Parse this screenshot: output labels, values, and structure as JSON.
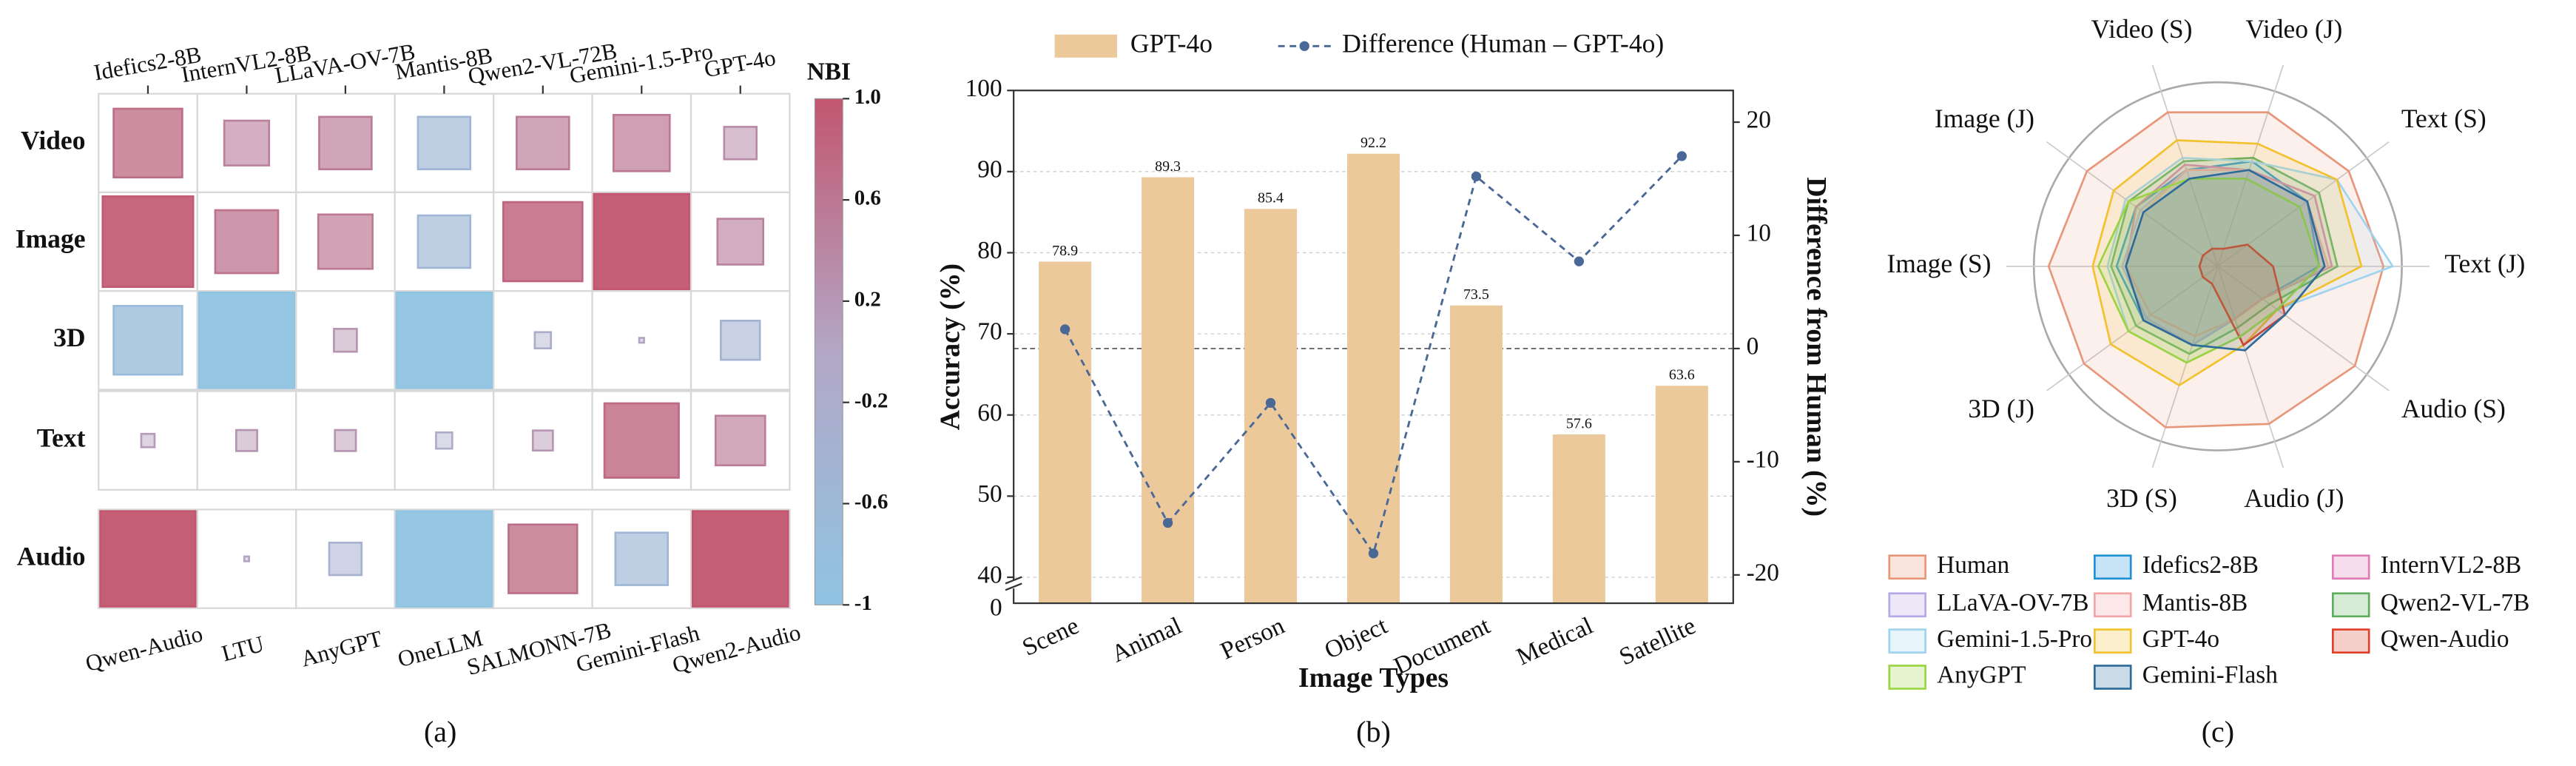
{
  "chart_data": [
    {
      "type": "heatmap",
      "panel_label": "(a)",
      "rows": [
        "Video",
        "Image",
        "3D",
        "Text",
        "Audio"
      ],
      "columns_top": [
        "Idefics2-8B",
        "InternVL2-8B",
        "LLaVA-OV-7B",
        "Mantis-8B",
        "Qwen2-VL-72B",
        "Gemini-1.5-Pro",
        "GPT-4o"
      ],
      "columns_bottom": [
        "Qwen-Audio",
        "LTU",
        "AnyGPT",
        "OneLLM",
        "SALMONN-7B",
        "Gemini-Flash",
        "Qwen2-Audio"
      ],
      "values": [
        [
          0.72,
          0.47,
          0.55,
          -0.55,
          0.55,
          0.59,
          0.34
        ],
        [
          0.95,
          0.66,
          0.57,
          -0.55,
          0.83,
          1.0,
          0.48
        ],
        [
          -0.72,
          -1.0,
          0.24,
          -1.0,
          -0.17,
          0.05,
          -0.41
        ],
        [
          0.14,
          0.22,
          0.22,
          -0.17,
          0.21,
          0.78,
          0.52
        ],
        [
          1.0,
          0.05,
          -0.34,
          -1.0,
          0.72,
          -0.55,
          1.0
        ]
      ],
      "colorbar": {
        "label": "NBI",
        "lim": [
          -1,
          1
        ],
        "ticks": [
          {
            "value": 1,
            "label": "1.0"
          },
          0.6,
          0.2,
          -0.2,
          -0.6,
          -1
        ],
        "colors": [
          "#8fc4e2",
          "#b3a7c6",
          "#c2566f"
        ]
      }
    },
    {
      "type": "bar",
      "panel_label": "(b)",
      "categories": [
        "Scene",
        "Animal",
        "Person",
        "Object",
        "Document",
        "Medical",
        "Satellite"
      ],
      "series": [
        {
          "name": "GPT-4o",
          "type": "bar",
          "color": "#ebc99b",
          "values": [
            78.9,
            89.3,
            85.4,
            92.2,
            73.5,
            57.6,
            63.6
          ]
        },
        {
          "name": "Difference (Human – GPT-4o)",
          "type": "line",
          "axis": "y2",
          "color": "#4a6896",
          "values": [
            1.7,
            -15.4,
            -4.8,
            -18.1,
            15.2,
            7.7,
            17.0
          ]
        }
      ],
      "xlabel": "Image Types",
      "ylabel": "Accuracy (%)",
      "y2label": "Difference from Human (%)",
      "ylim": [
        36.8,
        100
      ],
      "yticks": [
        40,
        50,
        60,
        70,
        80,
        90,
        100
      ],
      "axis_break": 0,
      "y2lim": [
        -22.5,
        22.8
      ],
      "y2ticks": [
        -20,
        -10,
        0,
        10,
        20
      ],
      "y2_reference_line": 0,
      "grid": true
    },
    {
      "type": "radar",
      "panel_label": "(c)",
      "axes": [
        "Video (S)",
        "Video (J)",
        "Text (S)",
        "Text (J)",
        "Audio (S)",
        "Audio (J)",
        "3D (S)",
        "3D (J)",
        "Image (S)",
        "Image (J)"
      ],
      "rlim": [
        0,
        100
      ],
      "series": [
        {
          "name": "Human",
          "color": "#e8967a",
          "values": [
            88,
            88,
            88,
            90,
            92,
            90,
            92,
            90,
            92,
            88
          ]
        },
        {
          "name": "Idefics2-8B",
          "color": "#1f8fd6",
          "values": [
            55,
            60,
            60,
            55,
            30,
            30,
            45,
            50,
            55,
            55
          ]
        },
        {
          "name": "InternVL2-8B",
          "color": "#e07bb5",
          "values": [
            58,
            55,
            65,
            62,
            30,
            30,
            45,
            50,
            50,
            55
          ]
        },
        {
          "name": "LLaVA-OV-7B",
          "color": "#b6a7e8",
          "values": [
            55,
            55,
            60,
            60,
            30,
            30,
            45,
            48,
            52,
            52
          ]
        },
        {
          "name": "Mantis-8B",
          "color": "#f2a5a5",
          "values": [
            55,
            55,
            60,
            60,
            30,
            30,
            40,
            45,
            50,
            50
          ]
        },
        {
          "name": "Qwen2-VL-7B",
          "color": "#5fae5f",
          "values": [
            60,
            62,
            68,
            65,
            35,
            35,
            50,
            55,
            58,
            60
          ]
        },
        {
          "name": "Gemini-1.5-Pro",
          "color": "#9fd3ef",
          "values": [
            62,
            60,
            80,
            95,
            40,
            40,
            55,
            60,
            60,
            62
          ]
        },
        {
          "name": "GPT-4o",
          "color": "#f2c12e",
          "values": [
            72,
            70,
            80,
            78,
            40,
            45,
            68,
            72,
            68,
            70
          ]
        },
        {
          "name": "Qwen-Audio",
          "color": "#e0402a",
          "values": [
            10,
            10,
            20,
            30,
            45,
            45,
            10,
            10,
            10,
            10
          ]
        },
        {
          "name": "AnyGPT",
          "color": "#9bd442",
          "values": [
            50,
            50,
            55,
            55,
            40,
            40,
            55,
            60,
            65,
            60
          ]
        },
        {
          "name": "Gemini-Flash",
          "color": "#2d6b9a",
          "values": [
            50,
            55,
            60,
            58,
            45,
            48,
            45,
            50,
            50,
            50
          ]
        }
      ]
    }
  ]
}
